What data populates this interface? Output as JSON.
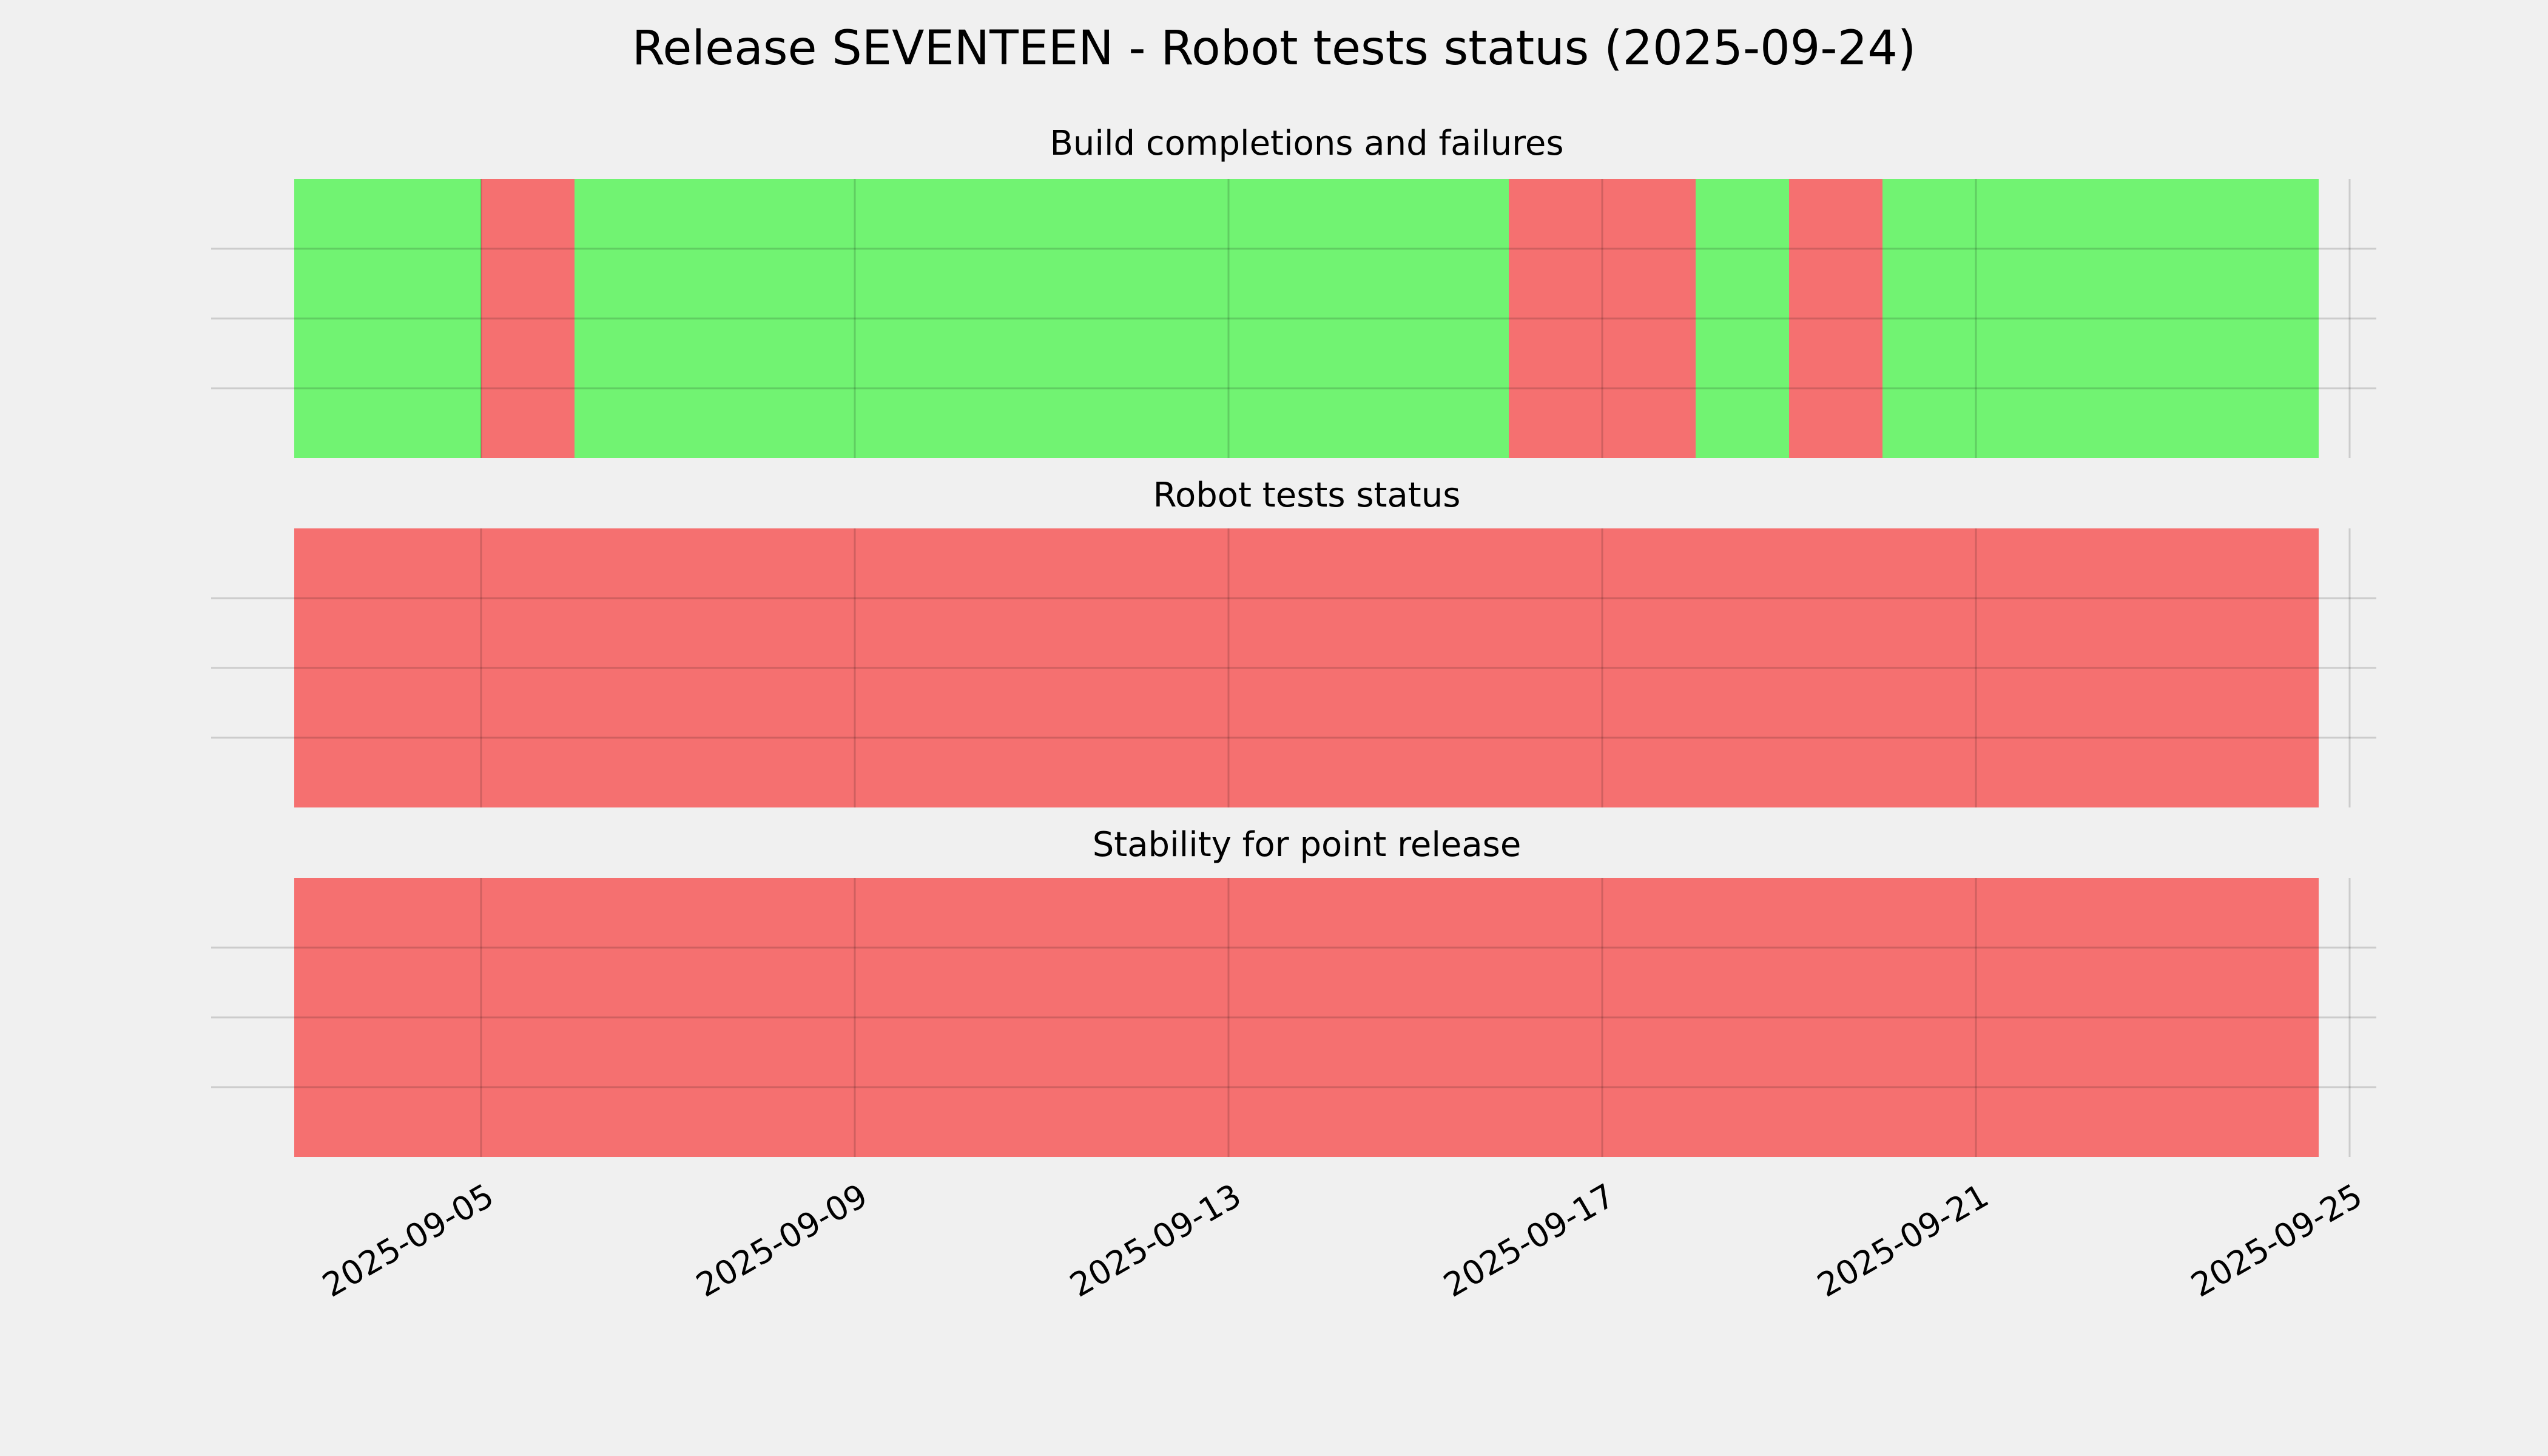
{
  "title": "Release SEVENTEEN - Robot tests status (2025-09-24)",
  "colors": {
    "pass": "#71f372",
    "fail": "#f57070",
    "background": "#f0f0f0",
    "grid_line": "#cbcbcb",
    "text": "#000000"
  },
  "x_axis": {
    "tick_labels": [
      "2025-09-05",
      "2025-09-09",
      "2025-09-13",
      "2025-09-17",
      "2025-09-21",
      "2025-09-25"
    ],
    "tick_rotation_deg": 30
  },
  "timeline": {
    "dates": [
      "2025-09-03",
      "2025-09-04",
      "2025-09-05",
      "2025-09-06",
      "2025-09-07",
      "2025-09-08",
      "2025-09-09",
      "2025-09-10",
      "2025-09-11",
      "2025-09-12",
      "2025-09-13",
      "2025-09-14",
      "2025-09-15",
      "2025-09-16",
      "2025-09-17",
      "2025-09-18",
      "2025-09-19",
      "2025-09-20",
      "2025-09-21",
      "2025-09-22",
      "2025-09-23",
      "2025-09-24"
    ],
    "last_day_fraction": 0.67
  },
  "chart_data": [
    {
      "type": "status-timeline",
      "title": "Build completions and failures",
      "statuses": [
        "pass",
        "pass",
        "fail",
        "pass",
        "pass",
        "pass",
        "pass",
        "pass",
        "pass",
        "pass",
        "pass",
        "pass",
        "pass",
        "fail",
        "fail",
        "pass",
        "fail",
        "pass",
        "pass",
        "pass",
        "pass",
        "pass"
      ]
    },
    {
      "type": "status-timeline",
      "title": "Robot tests status",
      "statuses": [
        "fail",
        "fail",
        "fail",
        "fail",
        "fail",
        "fail",
        "fail",
        "fail",
        "fail",
        "fail",
        "fail",
        "fail",
        "fail",
        "fail",
        "fail",
        "fail",
        "fail",
        "fail",
        "fail",
        "fail",
        "fail",
        "fail"
      ]
    },
    {
      "type": "status-timeline",
      "title": "Stability for point release",
      "statuses": [
        "fail",
        "fail",
        "fail",
        "fail",
        "fail",
        "fail",
        "fail",
        "fail",
        "fail",
        "fail",
        "fail",
        "fail",
        "fail",
        "fail",
        "fail",
        "fail",
        "fail",
        "fail",
        "fail",
        "fail",
        "fail",
        "fail"
      ]
    }
  ]
}
